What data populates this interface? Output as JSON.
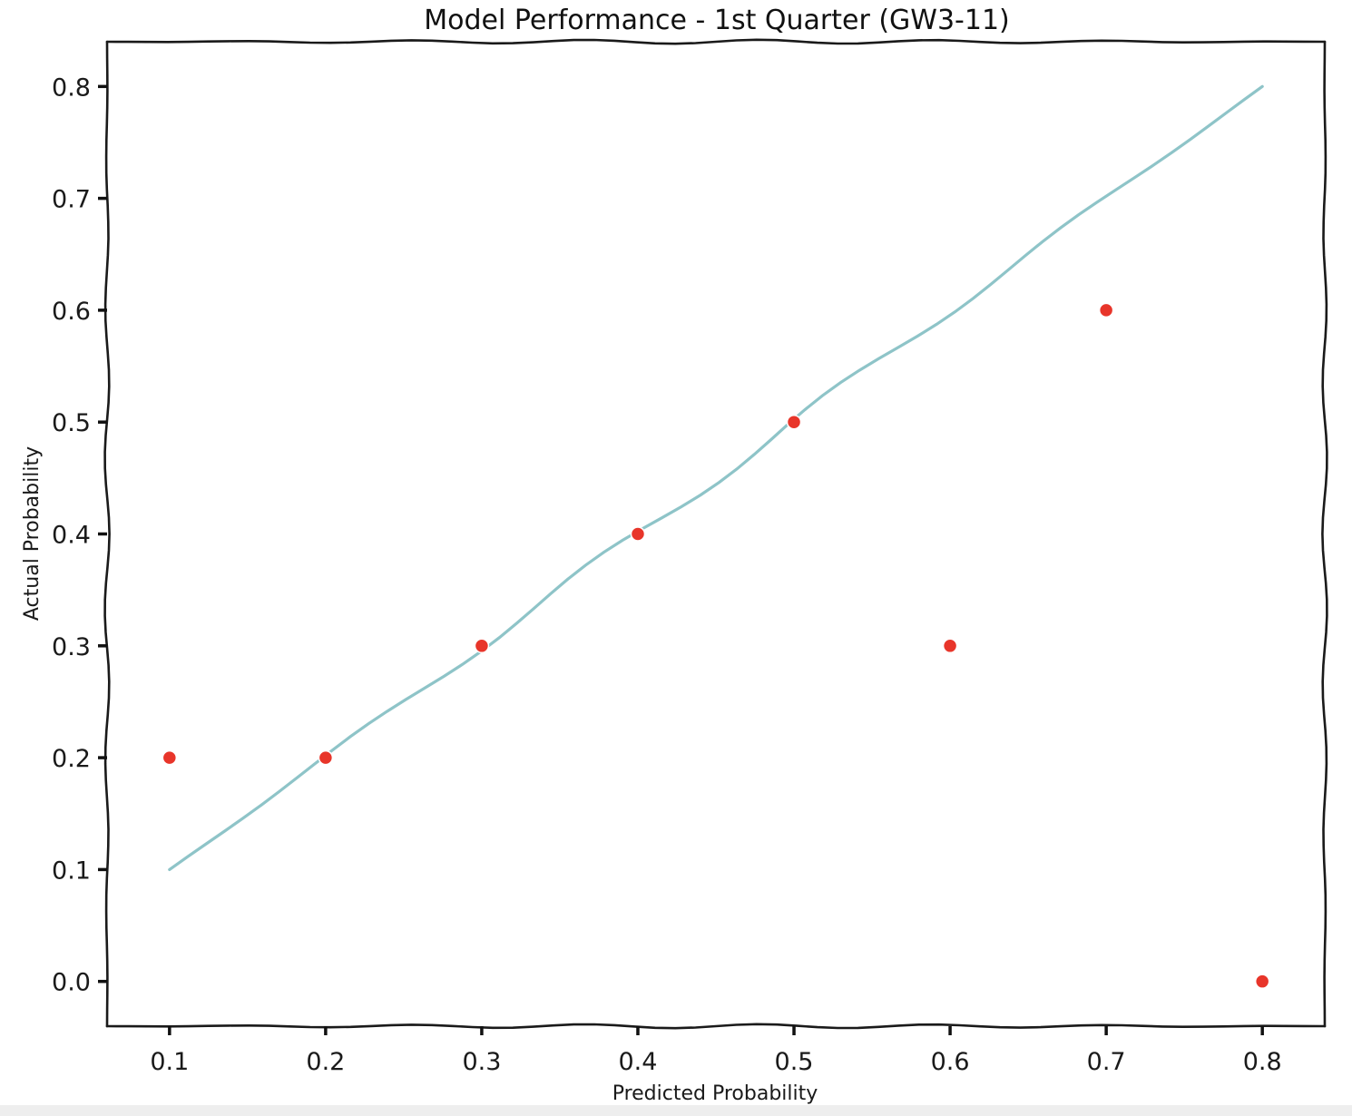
{
  "chart_data": {
    "type": "scatter",
    "title": "Model Performance - 1st Quarter (GW3-11)",
    "xlabel": "Predicted Probability",
    "ylabel": "Actual Probability",
    "xlim": [
      0.06,
      0.84
    ],
    "ylim": [
      -0.04,
      0.84
    ],
    "xticks": [
      "0.1",
      "0.2",
      "0.3",
      "0.4",
      "0.5",
      "0.6",
      "0.7",
      "0.8"
    ],
    "yticks": [
      "0.0",
      "0.1",
      "0.2",
      "0.3",
      "0.4",
      "0.5",
      "0.6",
      "0.7",
      "0.8"
    ],
    "grid": false,
    "legend": "none",
    "style": "xkcd",
    "series": [
      {
        "kind": "scatter",
        "color": "#e8352a",
        "x": [
          0.1,
          0.2,
          0.3,
          0.4,
          0.5,
          0.6,
          0.7,
          0.8
        ],
        "y": [
          0.2,
          0.2,
          0.3,
          0.4,
          0.5,
          0.3,
          0.6,
          0.0
        ]
      },
      {
        "kind": "line",
        "color": "#8ec4c8",
        "x": [
          0.1,
          0.8
        ],
        "y": [
          0.1,
          0.8
        ]
      }
    ]
  }
}
